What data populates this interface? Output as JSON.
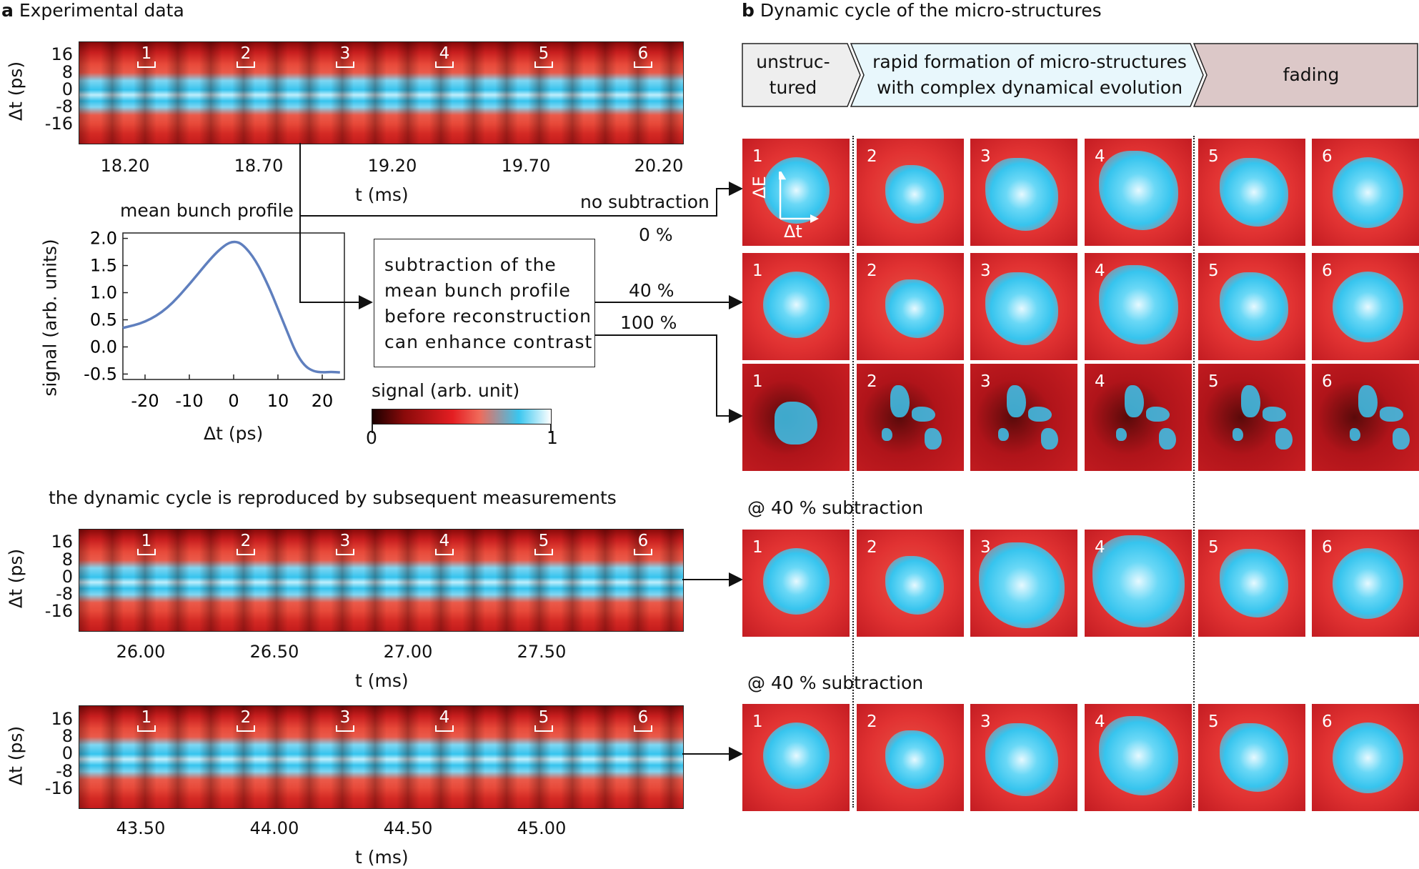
{
  "panel_a": {
    "title_letter": "a",
    "title": "Experimental data",
    "y_ticks": [
      "16",
      "8",
      "0",
      "-8",
      "-16"
    ],
    "y_label": "Δt (ps)",
    "x_label": "t (ms)",
    "markers": [
      "1",
      "2",
      "3",
      "4",
      "5",
      "6"
    ],
    "heatmaps": [
      {
        "x_ticks": [
          "18.20",
          "18.70",
          "19.20",
          "19.70",
          "20.20"
        ]
      },
      {
        "x_ticks": [
          "26.00",
          "26.50",
          "27.00",
          "27.50"
        ]
      },
      {
        "x_ticks": [
          "43.50",
          "44.00",
          "44.50",
          "45.00"
        ]
      }
    ],
    "reproduce_note": "the dynamic cycle is reproduced by subsequent measurements",
    "mean_profile": {
      "title": "mean bunch profile",
      "ylabel": "signal (arb. units)",
      "xlabel": "Δt (ps)",
      "y_ticks": [
        "2.0",
        "1.5",
        "1.0",
        "0.5",
        "0.0",
        "-0.5"
      ],
      "x_ticks": [
        "-20",
        "-10",
        "0",
        "10",
        "20"
      ],
      "line_color": "#5f7fbe"
    },
    "subtraction_box": [
      "subtraction of the",
      "mean bunch profile",
      "before reconstruction",
      "can enhance contrast"
    ],
    "labels": {
      "no_sub": "no subtraction",
      "p0": "0 %",
      "p40": "40 %",
      "p100": "100 %"
    },
    "colorbar": {
      "title": "signal (arb. unit)",
      "min": "0",
      "max": "1"
    }
  },
  "panel_b": {
    "title_letter": "b",
    "title": "Dynamic cycle of the micro-structures",
    "stages": [
      {
        "label": "unstruc-\ntured",
        "color": "#eeeeee"
      },
      {
        "label": "rapid formation of micro-structures\nwith complex dynamical evolution",
        "color": "#e8f7fc"
      },
      {
        "label": "fading",
        "color": "#dcc8c8"
      }
    ],
    "axis_labels": {
      "energy": "ΔE",
      "time": "Δt"
    },
    "tile_numbers": [
      "1",
      "2",
      "3",
      "4",
      "5",
      "6"
    ],
    "subtraction_caption": "@ 40 % subtraction"
  },
  "chart_data": {
    "type": "line",
    "title": "mean bunch profile",
    "xlabel": "Δt (ps)",
    "ylabel": "signal (arb. units)",
    "xlim": [
      -25,
      25
    ],
    "ylim": [
      -0.6,
      2.1
    ],
    "x": [
      -25,
      -20,
      -15,
      -10,
      -5,
      -2,
      0,
      2,
      5,
      8,
      10,
      12,
      14,
      16,
      18,
      20,
      22,
      24
    ],
    "series": [
      {
        "values": [
          0.35,
          0.45,
          0.7,
          1.15,
          1.65,
          1.88,
          1.95,
          1.9,
          1.6,
          1.1,
          0.7,
          0.3,
          -0.1,
          -0.35,
          -0.45,
          -0.47,
          -0.46,
          -0.47
        ]
      }
    ]
  }
}
